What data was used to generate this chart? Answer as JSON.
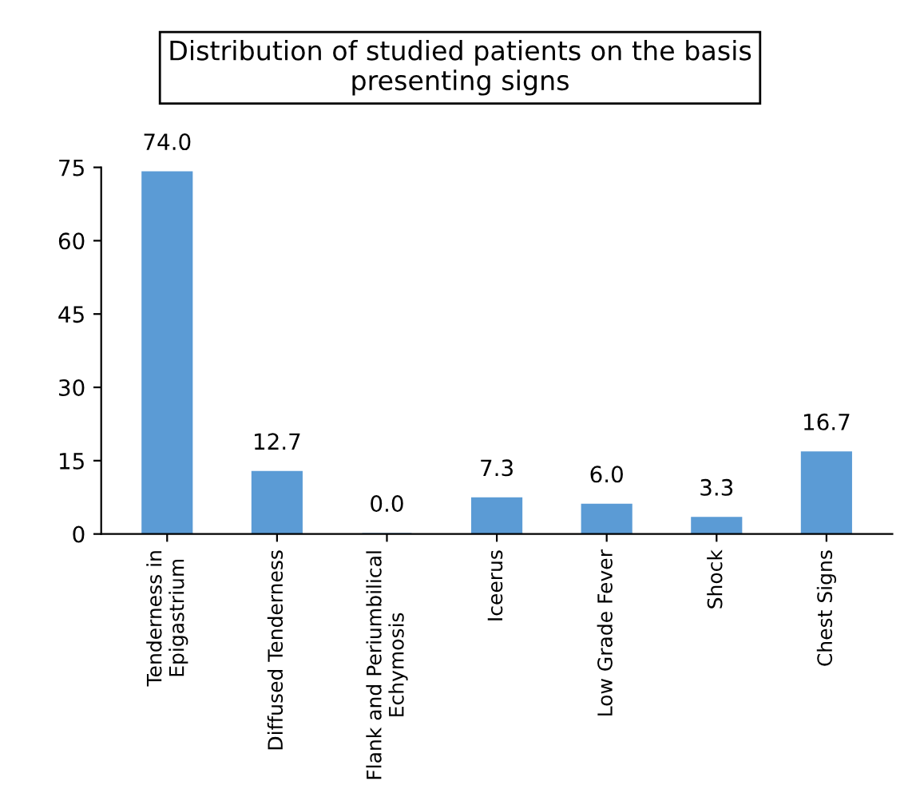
{
  "chart_data": {
    "type": "bar",
    "title": "Distribution of studied patients on the basis\npresenting signs",
    "categories": [
      "Tenderness in\nEpigastrium",
      "Diffused Tenderness",
      "Flank and Periumbilical\nEchymosis",
      "Iceerus",
      "Low Grade Fever",
      "Shock",
      "Chest Signs"
    ],
    "values": [
      74.0,
      12.7,
      0.0,
      7.3,
      6.0,
      3.3,
      16.7
    ],
    "value_labels": [
      "74.0",
      "12.7",
      "0.0",
      "7.3",
      "6.0",
      "3.3",
      "16.7"
    ],
    "color": "#5b9bd5",
    "ylim": [
      0,
      75
    ],
    "yticks": [
      0,
      15,
      30,
      45,
      60,
      75
    ],
    "grid": false
  }
}
